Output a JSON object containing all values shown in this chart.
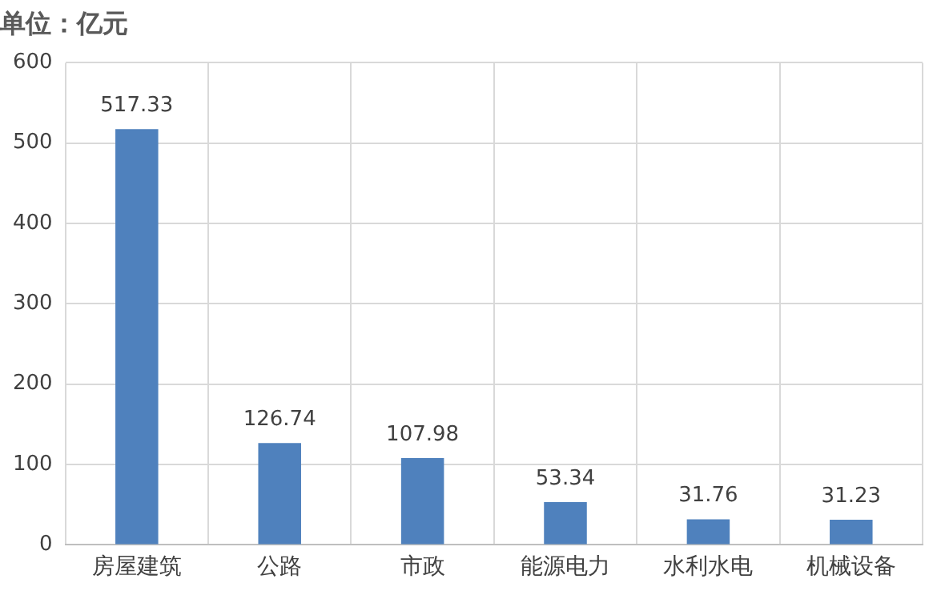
{
  "chart_data": {
    "type": "bar",
    "title": "单位：亿元",
    "categories": [
      "房屋建筑",
      "公路",
      "市政",
      "能源电力",
      "水利水电",
      "机械设备"
    ],
    "values": [
      517.33,
      126.74,
      107.98,
      53.34,
      31.76,
      31.23
    ],
    "color": "#4f81bd",
    "ylim": [
      0,
      600
    ],
    "yticks": [
      0,
      100,
      200,
      300,
      400,
      500,
      600
    ],
    "grid": true,
    "data_labels": true,
    "legend": false
  }
}
